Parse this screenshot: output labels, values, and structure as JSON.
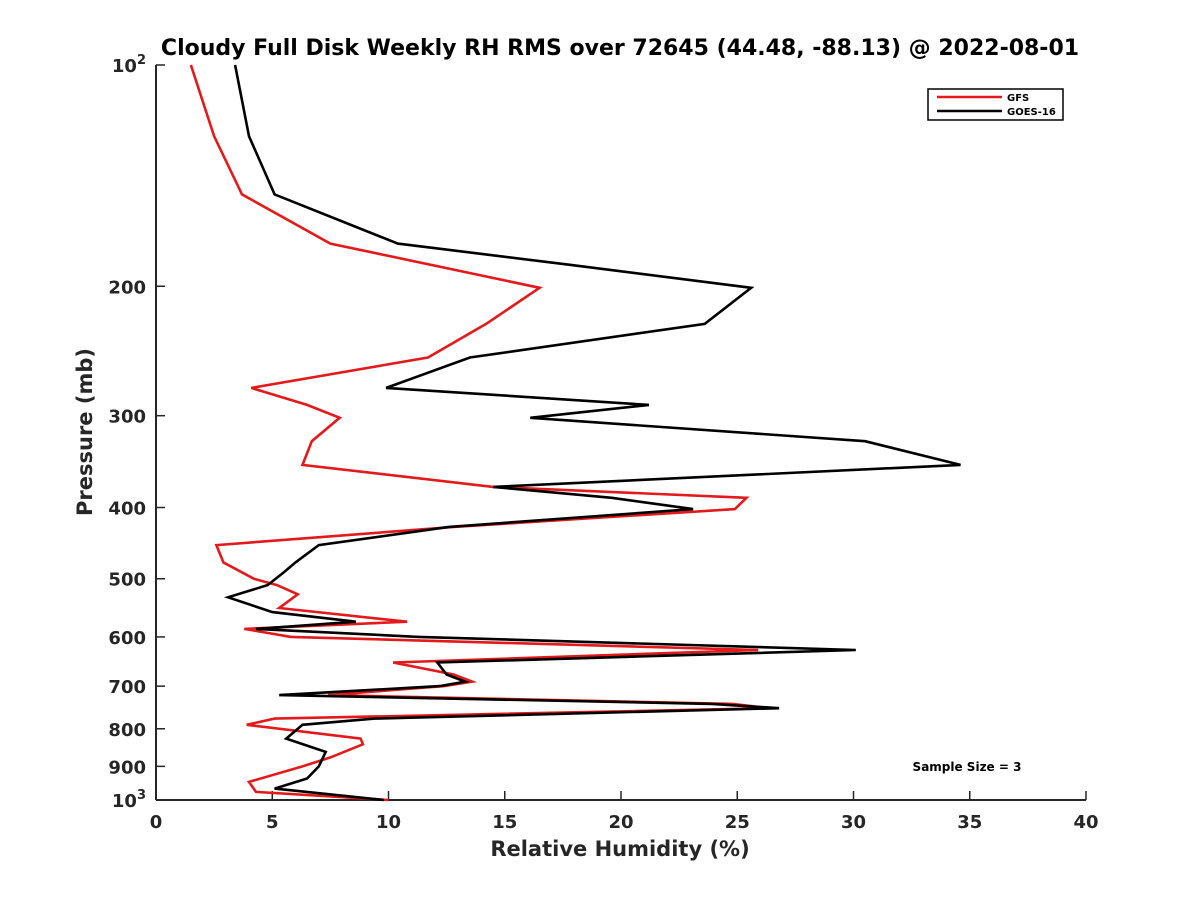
{
  "chart_data": {
    "type": "line",
    "title": "Cloudy Full Disk Weekly RH RMS over 72645 (44.48, -88.13) @ 2022-08-01",
    "xlabel": "Relative Humidity (%)",
    "ylabel": "Pressure (mb)",
    "xlim": [
      0,
      40
    ],
    "ylim": [
      100,
      1000
    ],
    "y_scale": "log",
    "y_reversed": true,
    "x_ticks": [
      "0",
      "5",
      "10",
      "15",
      "20",
      "25",
      "30",
      "35",
      "40"
    ],
    "y_ticks": [
      {
        "value": 100,
        "label": "10",
        "sup": "2"
      },
      {
        "value": 200,
        "label": "200",
        "sup": ""
      },
      {
        "value": 300,
        "label": "300",
        "sup": ""
      },
      {
        "value": 400,
        "label": "400",
        "sup": ""
      },
      {
        "value": 500,
        "label": "500",
        "sup": ""
      },
      {
        "value": 600,
        "label": "600",
        "sup": ""
      },
      {
        "value": 700,
        "label": "700",
        "sup": ""
      },
      {
        "value": 800,
        "label": "800",
        "sup": ""
      },
      {
        "value": 900,
        "label": "900",
        "sup": ""
      },
      {
        "value": 1000,
        "label": "10",
        "sup": "3"
      }
    ],
    "legend": {
      "position": "top-right"
    },
    "annotation": "Sample Size = 3",
    "series": [
      {
        "name": "GFS",
        "color": "#e31a1c",
        "points": [
          [
            1.5,
            100
          ],
          [
            2.5,
            125
          ],
          [
            3.7,
            150
          ],
          [
            7.5,
            175
          ],
          [
            16.5,
            201
          ],
          [
            14.2,
            225
          ],
          [
            11.7,
            250
          ],
          [
            4.1,
            275
          ],
          [
            6.5,
            290
          ],
          [
            7.9,
            302
          ],
          [
            6.7,
            325
          ],
          [
            6.3,
            350
          ],
          [
            14.5,
            375
          ],
          [
            25.4,
            388
          ],
          [
            24.9,
            402
          ],
          [
            12.8,
            425
          ],
          [
            2.6,
            450
          ],
          [
            2.9,
            475
          ],
          [
            4.2,
            500
          ],
          [
            5.2,
            510
          ],
          [
            6.1,
            525
          ],
          [
            5.3,
            548
          ],
          [
            10.8,
            572
          ],
          [
            3.8,
            585
          ],
          [
            5.8,
            600
          ],
          [
            25.9,
            625
          ],
          [
            10.2,
            650
          ],
          [
            12.8,
            675
          ],
          [
            13.6,
            690
          ],
          [
            12.4,
            700
          ],
          [
            7.4,
            720
          ],
          [
            24.8,
            740
          ],
          [
            26.4,
            750
          ],
          [
            5.1,
            775
          ],
          [
            3.9,
            790
          ],
          [
            8.8,
            825
          ],
          [
            8.9,
            840
          ],
          [
            7.5,
            875
          ],
          [
            6.3,
            900
          ],
          [
            4.0,
            945
          ],
          [
            4.3,
            975
          ],
          [
            10,
            1000
          ]
        ]
      },
      {
        "name": "GOES-16",
        "color": "#000000",
        "points": [
          [
            3.4,
            100
          ],
          [
            4.0,
            125
          ],
          [
            5.1,
            150
          ],
          [
            10.4,
            175
          ],
          [
            17.8,
            187
          ],
          [
            25.6,
            201
          ],
          [
            23.6,
            225
          ],
          [
            13.5,
            250
          ],
          [
            9.9,
            275
          ],
          [
            21.2,
            290
          ],
          [
            16.1,
            302
          ],
          [
            30.5,
            325
          ],
          [
            34.6,
            350
          ],
          [
            14.5,
            375
          ],
          [
            19.6,
            388
          ],
          [
            23.1,
            402
          ],
          [
            12.6,
            425
          ],
          [
            7.0,
            450
          ],
          [
            6.0,
            475
          ],
          [
            5.5,
            490
          ],
          [
            4.8,
            510
          ],
          [
            3.1,
            530
          ],
          [
            5.0,
            555
          ],
          [
            8.6,
            572
          ],
          [
            4.3,
            585
          ],
          [
            11.3,
            600
          ],
          [
            30.1,
            625
          ],
          [
            12.1,
            650
          ],
          [
            12.5,
            675
          ],
          [
            13.3,
            690
          ],
          [
            12.2,
            700
          ],
          [
            5.3,
            720
          ],
          [
            23.9,
            740
          ],
          [
            26.8,
            750
          ],
          [
            9.4,
            775
          ],
          [
            6.3,
            790
          ],
          [
            5.6,
            825
          ],
          [
            7.3,
            860
          ],
          [
            7.0,
            900
          ],
          [
            6.5,
            935
          ],
          [
            5.1,
            965
          ],
          [
            9.8,
            1000
          ]
        ]
      }
    ]
  }
}
